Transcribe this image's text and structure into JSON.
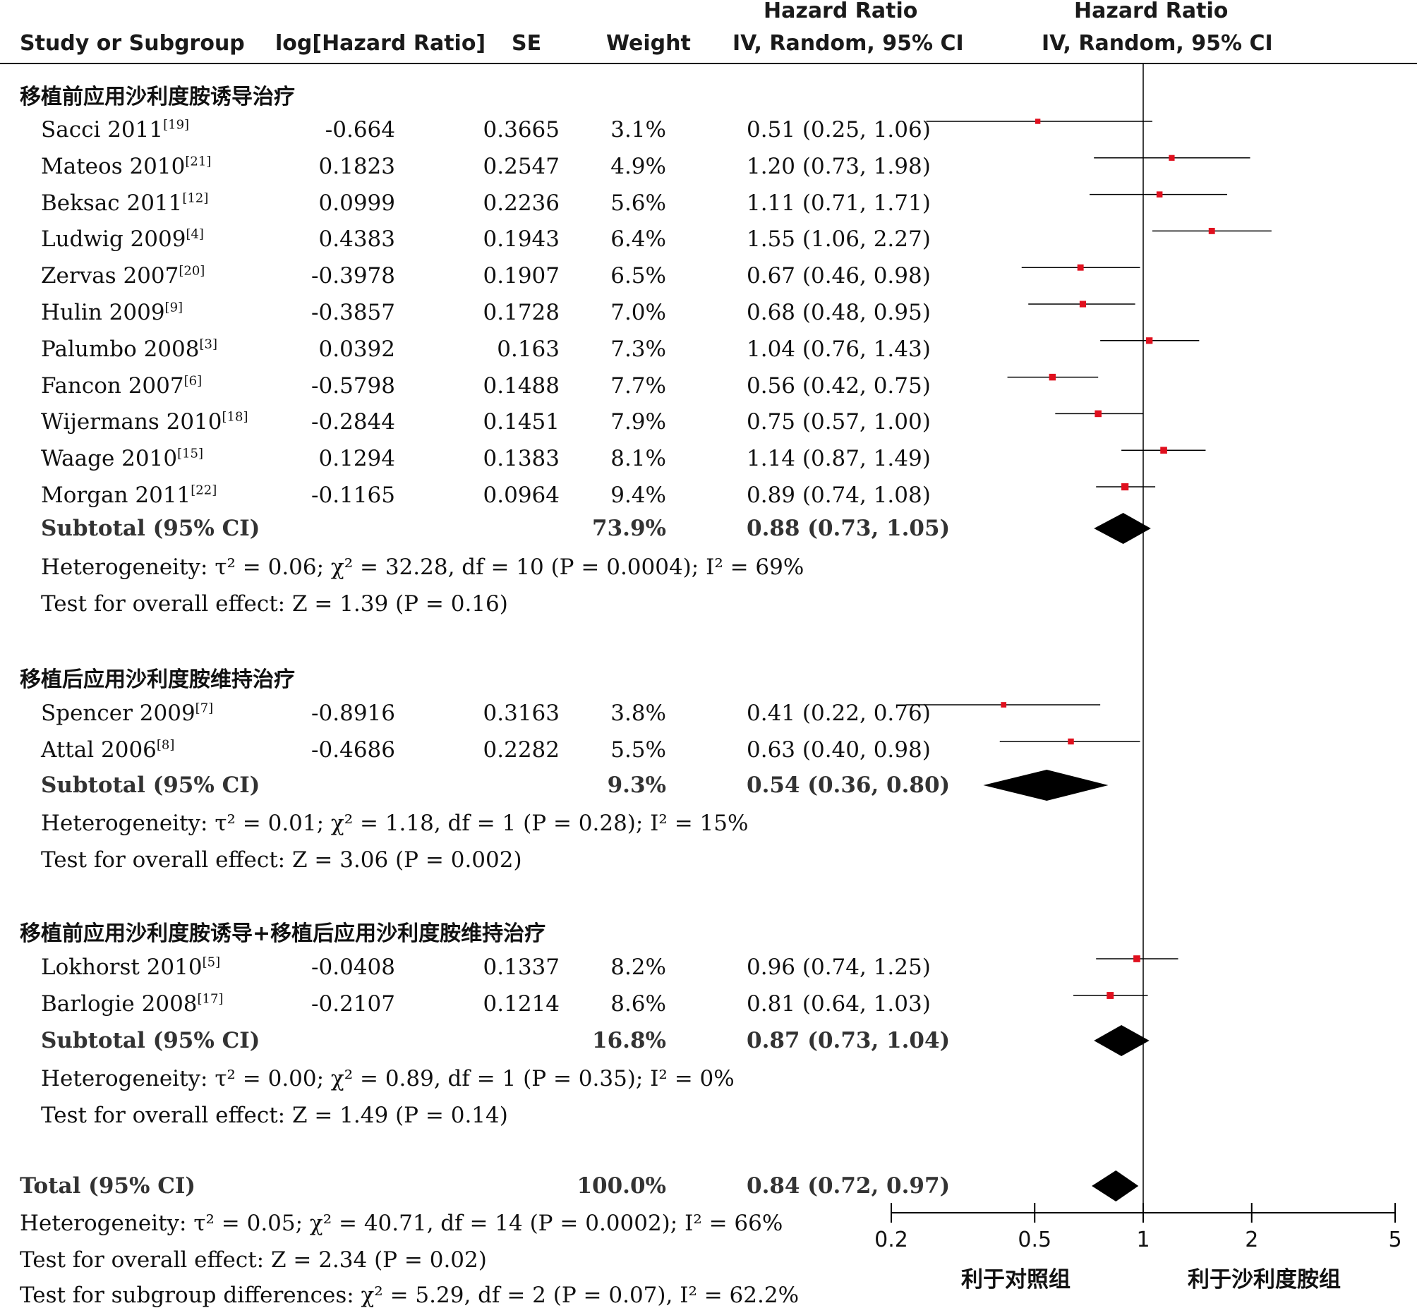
{
  "header": {
    "study": "Study or Subgroup",
    "loghr": "log[Hazard Ratio]",
    "se": "SE",
    "weight": "Weight",
    "hr_title": "Hazard Ratio",
    "hr_sub": "IV, Random, 95% CI",
    "plot_title": "Hazard Ratio",
    "plot_sub": "IV, Random, 95% CI"
  },
  "chart_data": {
    "type": "forest",
    "x_scale": "log",
    "xlim": [
      0.2,
      5
    ],
    "x_ticks": [
      "0.2",
      "0.5",
      "1",
      "2",
      "5"
    ],
    "favors_left": "利于对照组",
    "favors_right": "利于沙利度胺组",
    "groups": [
      {
        "title": "移植前应用沙利度胺诱导治疗",
        "studies": [
          {
            "name": "Sacci 2011",
            "ref": "[19]",
            "loghr": "-0.664",
            "se": "0.3665",
            "weight": "3.1%",
            "ci_text": "0.51 (0.25, 1.06)",
            "hr": 0.51,
            "lo": 0.25,
            "hi": 1.06
          },
          {
            "name": "Mateos 2010",
            "ref": "[21]",
            "loghr": "0.1823",
            "se": "0.2547",
            "weight": "4.9%",
            "ci_text": "1.20 (0.73, 1.98)",
            "hr": 1.2,
            "lo": 0.73,
            "hi": 1.98
          },
          {
            "name": "Beksac 2011",
            "ref": "[12]",
            "loghr": "0.0999",
            "se": "0.2236",
            "weight": "5.6%",
            "ci_text": "1.11 (0.71, 1.71)",
            "hr": 1.11,
            "lo": 0.71,
            "hi": 1.71
          },
          {
            "name": "Ludwig 2009",
            "ref": "[4]",
            "loghr": "0.4383",
            "se": "0.1943",
            "weight": "6.4%",
            "ci_text": "1.55 (1.06, 2.27)",
            "hr": 1.55,
            "lo": 1.06,
            "hi": 2.27
          },
          {
            "name": "Zervas 2007",
            "ref": "[20]",
            "loghr": "-0.3978",
            "se": "0.1907",
            "weight": "6.5%",
            "ci_text": "0.67 (0.46, 0.98)",
            "hr": 0.67,
            "lo": 0.46,
            "hi": 0.98
          },
          {
            "name": "Hulin 2009",
            "ref": "[9]",
            "loghr": "-0.3857",
            "se": "0.1728",
            "weight": "7.0%",
            "ci_text": "0.68 (0.48, 0.95)",
            "hr": 0.68,
            "lo": 0.48,
            "hi": 0.95
          },
          {
            "name": "Palumbo 2008",
            "ref": "[3]",
            "loghr": "0.0392",
            "se": "0.163",
            "weight": "7.3%",
            "ci_text": "1.04 (0.76, 1.43)",
            "hr": 1.04,
            "lo": 0.76,
            "hi": 1.43
          },
          {
            "name": "Fancon 2007",
            "ref": "[6]",
            "loghr": "-0.5798",
            "se": "0.1488",
            "weight": "7.7%",
            "ci_text": "0.56 (0.42, 0.75)",
            "hr": 0.56,
            "lo": 0.42,
            "hi": 0.75
          },
          {
            "name": "Wijermans 2010",
            "ref": "[18]",
            "loghr": "-0.2844",
            "se": "0.1451",
            "weight": "7.9%",
            "ci_text": "0.75 (0.57, 1.00)",
            "hr": 0.75,
            "lo": 0.57,
            "hi": 1.0
          },
          {
            "name": "Waage 2010",
            "ref": "[15]",
            "loghr": "0.1294",
            "se": "0.1383",
            "weight": "8.1%",
            "ci_text": "1.14 (0.87, 1.49)",
            "hr": 1.14,
            "lo": 0.87,
            "hi": 1.49
          },
          {
            "name": "Morgan 2011",
            "ref": "[22]",
            "loghr": "-0.1165",
            "se": "0.0964",
            "weight": "9.4%",
            "ci_text": "0.89 (0.74, 1.08)",
            "hr": 0.89,
            "lo": 0.74,
            "hi": 1.08
          }
        ],
        "subtotal": {
          "label": "Subtotal (95% CI)",
          "weight": "73.9%",
          "ci_text": "0.88 (0.73, 1.05)",
          "hr": 0.88,
          "lo": 0.73,
          "hi": 1.05
        },
        "heterogeneity": "Heterogeneity: τ² = 0.06; χ² = 32.28, df = 10 (P = 0.0004); I² = 69%",
        "overall": "Test for overall effect: Z = 1.39 (P = 0.16)"
      },
      {
        "title": "移植后应用沙利度胺维持治疗",
        "studies": [
          {
            "name": "Spencer 2009",
            "ref": "[7]",
            "loghr": "-0.8916",
            "se": "0.3163",
            "weight": "3.8%",
            "ci_text": "0.41 (0.22, 0.76)",
            "hr": 0.41,
            "lo": 0.22,
            "hi": 0.76
          },
          {
            "name": "Attal 2006",
            "ref": "[8]",
            "loghr": "-0.4686",
            "se": "0.2282",
            "weight": "5.5%",
            "ci_text": "0.63 (0.40, 0.98)",
            "hr": 0.63,
            "lo": 0.4,
            "hi": 0.98
          }
        ],
        "subtotal": {
          "label": "Subtotal (95% CI)",
          "weight": "9.3%",
          "ci_text": "0.54 (0.36, 0.80)",
          "hr": 0.54,
          "lo": 0.36,
          "hi": 0.8
        },
        "heterogeneity": "Heterogeneity: τ² = 0.01; χ² = 1.18, df = 1 (P = 0.28); I² = 15%",
        "overall": "Test for overall effect: Z = 3.06 (P = 0.002)"
      },
      {
        "title": "移植前应用沙利度胺诱导+移植后应用沙利度胺维持治疗",
        "studies": [
          {
            "name": "Lokhorst 2010",
            "ref": "[5]",
            "loghr": "-0.0408",
            "se": "0.1337",
            "weight": "8.2%",
            "ci_text": "0.96 (0.74, 1.25)",
            "hr": 0.96,
            "lo": 0.74,
            "hi": 1.25
          },
          {
            "name": "Barlogie 2008",
            "ref": "[17]",
            "loghr": "-0.2107",
            "se": "0.1214",
            "weight": "8.6%",
            "ci_text": "0.81 (0.64, 1.03)",
            "hr": 0.81,
            "lo": 0.64,
            "hi": 1.03
          }
        ],
        "subtotal": {
          "label": "Subtotal (95% CI)",
          "weight": "16.8%",
          "ci_text": "0.87 (0.73, 1.04)",
          "hr": 0.87,
          "lo": 0.73,
          "hi": 1.04
        },
        "heterogeneity": "Heterogeneity: τ² = 0.00; χ² = 0.89, df = 1 (P = 0.35); I² = 0%",
        "overall": "Test for overall effect: Z = 1.49 (P = 0.14)"
      }
    ],
    "total": {
      "label": "Total (95% CI)",
      "weight": "100.0%",
      "ci_text": "0.84 (0.72, 0.97)",
      "hr": 0.84,
      "lo": 0.72,
      "hi": 0.97
    },
    "total_heterogeneity": "Heterogeneity: τ² = 0.05; χ² = 40.71, df = 14 (P = 0.0002); I² = 66%",
    "total_overall": "Test for overall effect: Z = 2.34 (P = 0.02)",
    "subgroup_diff": "Test for subgroup differences: χ² = 5.29, df = 2 (P = 0.07), I² = 62.2%",
    "colors": {
      "point": "#e0101e",
      "diamond": "#000000",
      "line": "#000000"
    }
  }
}
